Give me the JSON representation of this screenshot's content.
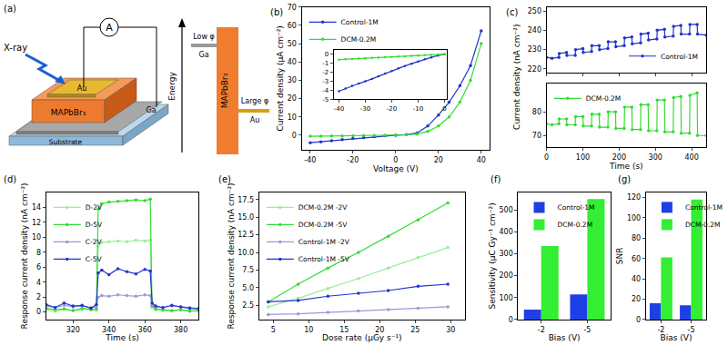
{
  "diagram": {
    "panel": "(a)",
    "xray": "X-ray",
    "meter": "A",
    "top_electrode": "Au",
    "absorber": "MAPbBr₃",
    "bottom_electrode": "Ga",
    "substrate": "Substrate",
    "energy": "Energy",
    "low": "Low φ",
    "low_metal": "Ga",
    "absorber_band": "MAPbBr₃",
    "high": "Large φ",
    "high_metal": "Au"
  },
  "chart_data": [
    {
      "type": "line",
      "title": "(b)",
      "xlabel": "Voltage (V)",
      "ylabel": "Current density (μA cm⁻²)",
      "x": [
        -40,
        -35,
        -30,
        -25,
        -20,
        -15,
        -10,
        -5,
        0,
        5,
        10,
        15,
        20,
        25,
        30,
        35,
        40
      ],
      "xlim": [
        -44,
        44
      ],
      "xticks": [
        -40,
        -20,
        0,
        20,
        40
      ],
      "ylim": [
        -8,
        70
      ],
      "yticks": [
        0,
        10,
        20,
        30,
        40,
        50,
        60,
        70
      ],
      "grid": false,
      "legend": "upper left",
      "series": [
        {
          "name": "Control-1M",
          "color": "#2233cc",
          "marker": "circle",
          "values": [
            -4.1,
            -3.6,
            -3.0,
            -2.45,
            -1.85,
            -1.3,
            -0.8,
            -0.35,
            0,
            0.3,
            1.2,
            5,
            11,
            18,
            27,
            38,
            57
          ]
        },
        {
          "name": "DCM-0.2M",
          "color": "#33dd33",
          "marker": "circle",
          "values": [
            -0.6,
            -0.52,
            -0.45,
            -0.37,
            -0.3,
            -0.22,
            -0.15,
            -0.07,
            0,
            0.2,
            0.6,
            2,
            5,
            10,
            18,
            30,
            50
          ]
        }
      ]
    },
    {
      "type": "line",
      "x": [
        -40,
        -37.5,
        -35,
        -32.5,
        -30,
        -27.5,
        -25,
        -22.5,
        -20,
        -17.5,
        -15,
        -12.5,
        -10,
        -7.5,
        -5,
        -2.5,
        0
      ],
      "xlim": [
        -42,
        1
      ],
      "xticks": [
        -40,
        -30,
        -20,
        -10,
        0
      ],
      "ylim": [
        -5,
        0.5
      ],
      "yticks": [
        -5,
        -4,
        -3,
        -2,
        -1,
        0
      ],
      "grid": false,
      "series": [
        {
          "color": "#2233cc",
          "marker": "circle",
          "values": [
            -4.1,
            -3.8,
            -3.5,
            -3.25,
            -3.0,
            -2.75,
            -2.45,
            -2.15,
            -1.85,
            -1.55,
            -1.3,
            -1.05,
            -0.8,
            -0.55,
            -0.35,
            -0.15,
            0
          ]
        },
        {
          "color": "#33dd33",
          "marker": "circle",
          "values": [
            -0.6,
            -0.56,
            -0.52,
            -0.48,
            -0.45,
            -0.41,
            -0.37,
            -0.34,
            -0.3,
            -0.26,
            -0.22,
            -0.19,
            -0.15,
            -0.11,
            -0.07,
            -0.04,
            0
          ]
        }
      ]
    },
    {
      "type": "line",
      "title": "(c)",
      "ylabel": "Current density (nA cm⁻²)",
      "x": [
        0,
        15,
        34,
        35,
        55,
        56,
        79,
        80,
        100,
        101,
        124,
        125,
        145,
        146,
        169,
        170,
        190,
        191,
        214,
        215,
        235,
        236,
        259,
        260,
        280,
        281,
        304,
        305,
        325,
        326,
        349,
        350,
        370,
        371,
        394,
        395,
        415,
        416,
        440
      ],
      "xlim": [
        0,
        440
      ],
      "xticks": [
        0,
        100,
        200,
        300,
        400
      ],
      "ylim": [
        218,
        252
      ],
      "yticks": [
        220,
        230,
        240,
        250
      ],
      "grid": false,
      "legend": "lower right",
      "tick_labels": "y",
      "series": [
        {
          "name": "Control-1M",
          "color": "#2233cc",
          "marker": "circle",
          "values": [
            226,
            225.5,
            226,
            228,
            228.5,
            227,
            227,
            230,
            230.5,
            228.5,
            229,
            232,
            232,
            230,
            230.5,
            234,
            234,
            231.5,
            232,
            236,
            236.5,
            233,
            233.5,
            238,
            238.5,
            235,
            235.5,
            240,
            240.5,
            236.5,
            237,
            242,
            242.5,
            238,
            238,
            243,
            243,
            238,
            237.5
          ]
        }
      ]
    },
    {
      "type": "line",
      "xlabel": "Time (s)",
      "x": [
        0,
        15,
        34,
        35,
        55,
        56,
        79,
        80,
        100,
        101,
        124,
        125,
        145,
        146,
        169,
        170,
        190,
        191,
        214,
        215,
        235,
        236,
        259,
        260,
        280,
        281,
        304,
        305,
        325,
        326,
        349,
        350,
        370,
        371,
        394,
        395,
        415,
        416,
        440
      ],
      "xlim": [
        0,
        440
      ],
      "xticks": [
        0,
        100,
        200,
        300,
        400
      ],
      "ylim": [
        65,
        92
      ],
      "yticks": [
        70,
        80
      ],
      "grid": false,
      "legend": "upper left",
      "series": [
        {
          "name": "DCM-0.2M",
          "color": "#33dd33",
          "marker": "circle",
          "values": [
            75,
            74.5,
            75,
            77,
            77,
            74.5,
            74.5,
            78,
            78,
            74,
            74,
            79,
            79,
            73.5,
            73.5,
            80,
            80,
            73,
            73,
            82,
            82,
            72.5,
            72.5,
            83,
            83,
            72,
            72,
            85,
            85,
            71.5,
            71.5,
            86,
            86.5,
            71,
            71,
            87,
            88,
            70,
            70
          ]
        }
      ]
    },
    {
      "type": "line",
      "title": "(d)",
      "xlabel": "Time (s)",
      "ylabel": "Response current density (nA cm⁻²)",
      "x": [
        305,
        310,
        315,
        320,
        325,
        330,
        333,
        334,
        336,
        340,
        345,
        350,
        355,
        360,
        363,
        364,
        366,
        370,
        375,
        380,
        385,
        390
      ],
      "xlim": [
        305,
        390
      ],
      "xticks": [
        320,
        340,
        360,
        380
      ],
      "ylim": [
        -1,
        16
      ],
      "yticks": [
        0,
        2,
        4,
        6,
        8,
        10,
        12,
        14
      ],
      "grid": false,
      "legend": "upper left",
      "series": [
        {
          "name": "D-2V",
          "color": "#99ee99",
          "marker": "circle",
          "values": [
            0.3,
            0.1,
            0.4,
            0.2,
            0.3,
            0.5,
            0.2,
            8.8,
            9.3,
            9.4,
            9.5,
            9.4,
            9.6,
            9.5,
            9.6,
            0.6,
            0.3,
            0.2,
            0.1,
            0.3,
            0.2,
            0.1
          ]
        },
        {
          "name": "D-5V",
          "color": "#33dd33",
          "marker": "circle",
          "values": [
            0.5,
            0.3,
            0.4,
            0.2,
            0.5,
            0.3,
            0.4,
            13.8,
            14.5,
            14.7,
            14.8,
            14.9,
            15,
            14.9,
            15.1,
            0.8,
            0.4,
            0.3,
            0.2,
            0.3,
            0.1,
            0.2
          ]
        },
        {
          "name": "C-2V",
          "color": "#9999dd",
          "marker": "circle",
          "values": [
            0.8,
            0.6,
            0.9,
            0.7,
            0.8,
            0.6,
            0.7,
            2.0,
            2.2,
            2.1,
            2.3,
            2.2,
            2.1,
            2.3,
            2.2,
            0.9,
            0.7,
            0.6,
            0.8,
            0.7,
            0.6,
            0.5
          ]
        },
        {
          "name": "C-5V",
          "color": "#2233cc",
          "marker": "circle",
          "values": [
            1.0,
            0.6,
            1.2,
            0.8,
            0.9,
            0.5,
            1.0,
            5.2,
            5.6,
            5.0,
            5.8,
            5.4,
            5.1,
            5.7,
            5.5,
            1.2,
            0.8,
            0.6,
            0.9,
            0.7,
            0.5,
            0.4
          ]
        }
      ]
    },
    {
      "type": "line",
      "title": "(e)",
      "xlabel": "Dose rate (μGy s⁻¹)",
      "ylabel": "Response current density (nA cm⁻²)",
      "x": [
        4.3,
        8.5,
        12.7,
        17,
        21.2,
        25.4,
        29.6
      ],
      "xlim": [
        3,
        32
      ],
      "xticks": [
        5,
        10,
        15,
        20,
        25,
        30
      ],
      "ylim": [
        0.5,
        18.5
      ],
      "yticks": [
        2.5,
        {
          "value": 5,
          "label": "5.0"
        },
        7.5,
        {
          "value": 10,
          "label": "10.0"
        },
        12.5,
        {
          "value": 15,
          "label": "15.0"
        },
        17.5
      ],
      "grid": false,
      "legend": "upper left",
      "series": [
        {
          "name": "DCM-0.2M -2V",
          "color": "#99ee99",
          "marker": "circle",
          "values": [
            2.3,
            3.5,
            4.9,
            6.3,
            7.8,
            9.3,
            10.7
          ]
        },
        {
          "name": "DCM-0.2M -5V",
          "color": "#33dd33",
          "marker": "circle",
          "values": [
            3.0,
            5.5,
            7.8,
            10.0,
            12.3,
            14.6,
            17.0
          ]
        },
        {
          "name": "Control-1M -2V",
          "color": "#9999dd",
          "marker": "circle",
          "values": [
            1.2,
            1.3,
            1.5,
            1.7,
            1.9,
            2.1,
            2.3
          ]
        },
        {
          "name": "Control-1M -5V",
          "color": "#2233cc",
          "marker": "circle",
          "values": [
            3.0,
            3.2,
            3.8,
            4.2,
            4.6,
            5.2,
            5.5
          ]
        }
      ]
    },
    {
      "type": "bar",
      "title": "(f)",
      "xlabel": "Bias (V)",
      "ylabel": "Sensitivity (μC Gy⁻¹ cm⁻²)",
      "categories": [
        "-2",
        "-5"
      ],
      "ylim": [
        0,
        580
      ],
      "yticks": [
        0,
        100,
        200,
        300,
        400,
        500
      ],
      "grid": false,
      "legend": "upper left",
      "series": [
        {
          "name": "Control-1M",
          "color": "#1f3fe6",
          "values": [
            45,
            115
          ]
        },
        {
          "name": "DCM-0.2M",
          "color": "#33ee33",
          "values": [
            335,
            550
          ]
        }
      ]
    },
    {
      "type": "bar",
      "title": "(g)",
      "xlabel": "Bias (V)",
      "ylabel": "SNR",
      "categories": [
        "-2",
        "-5"
      ],
      "ylim": [
        0,
        125
      ],
      "yticks": [
        0,
        20,
        40,
        60,
        80,
        100,
        120
      ],
      "grid": false,
      "legend": "upper left",
      "series": [
        {
          "name": "Control-1M",
          "color": "#1f3fe6",
          "values": [
            16,
            14
          ]
        },
        {
          "name": "DCM-0.2M",
          "color": "#33ee33",
          "values": [
            61,
            118
          ]
        }
      ]
    }
  ]
}
